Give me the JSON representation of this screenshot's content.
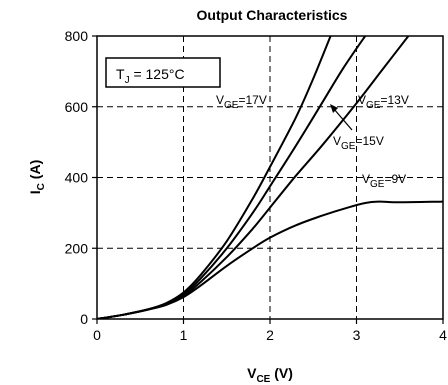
{
  "chart_data": {
    "type": "line",
    "title": "Output Characteristics",
    "xlabel": {
      "main": "V",
      "sub": "CE",
      "unit": " (V)"
    },
    "ylabel": {
      "main": "I",
      "sub": "C",
      "unit": " (A)"
    },
    "xlim": [
      0,
      4
    ],
    "ylim": [
      0,
      800
    ],
    "xticks": [
      0,
      1,
      2,
      3,
      4
    ],
    "yticks": [
      0,
      200,
      400,
      600,
      800
    ],
    "grid": true,
    "annotation": {
      "main": "T",
      "sub": "J",
      "rest": " = 125°C"
    },
    "series": [
      {
        "name": "V_GE=17V",
        "label": {
          "main": "V",
          "sub": "GE",
          "rest": "=17V"
        },
        "x": [
          0,
          0.3,
          0.6,
          0.8,
          1.0,
          1.2,
          1.5,
          1.8,
          2.0,
          2.3,
          2.5,
          2.7
        ],
        "y": [
          0,
          12,
          28,
          45,
          75,
          125,
          220,
          340,
          430,
          570,
          680,
          800
        ]
      },
      {
        "name": "V_GE=15V",
        "label": {
          "main": "V",
          "sub": "GE",
          "rest": "=15V"
        },
        "x": [
          0,
          0.3,
          0.6,
          0.8,
          1.0,
          1.2,
          1.5,
          1.8,
          2.0,
          2.3,
          2.6,
          2.85,
          3.1
        ],
        "y": [
          0,
          12,
          28,
          44,
          70,
          115,
          200,
          300,
          375,
          490,
          610,
          710,
          800
        ]
      },
      {
        "name": "V_GE=13V",
        "label": {
          "main": "V",
          "sub": "GE",
          "rest": "=13V"
        },
        "x": [
          0,
          0.3,
          0.6,
          0.8,
          1.0,
          1.2,
          1.5,
          1.8,
          2.0,
          2.3,
          2.6,
          3.0,
          3.3,
          3.6
        ],
        "y": [
          0,
          12,
          27,
          42,
          65,
          105,
          175,
          255,
          315,
          405,
          490,
          610,
          705,
          800
        ]
      },
      {
        "name": "V_GE=9V",
        "label": {
          "main": "V",
          "sub": "GE",
          "rest": "=9V"
        },
        "x": [
          0,
          0.3,
          0.6,
          0.8,
          1.0,
          1.2,
          1.5,
          1.8,
          2.0,
          2.3,
          2.6,
          2.9,
          3.1,
          3.25,
          3.5,
          4.0
        ],
        "y": [
          0,
          12,
          27,
          40,
          62,
          95,
          150,
          200,
          230,
          265,
          292,
          315,
          328,
          332,
          330,
          332
        ]
      }
    ]
  }
}
